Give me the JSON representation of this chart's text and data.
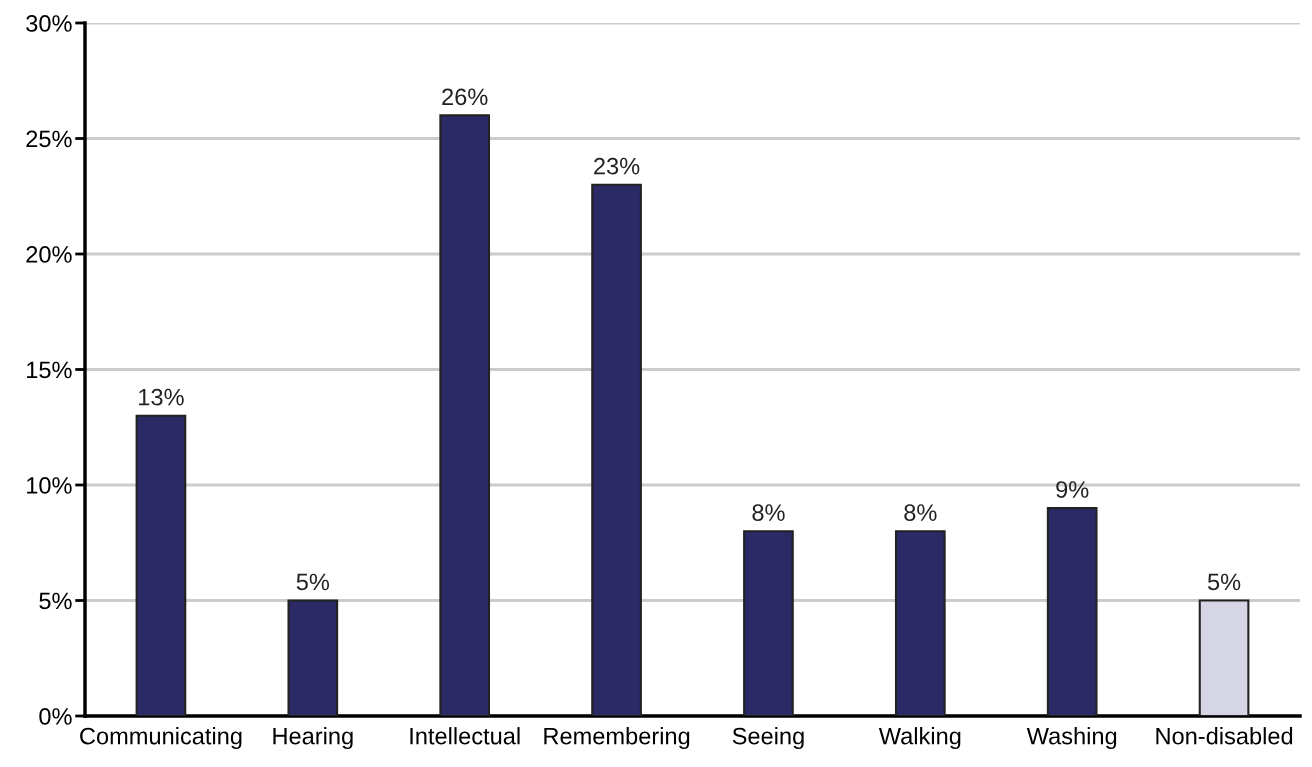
{
  "chart_data": {
    "type": "bar",
    "categories": [
      "Communicating",
      "Hearing",
      "Intellectual",
      "Remembering",
      "Seeing",
      "Walking",
      "Washing",
      "Non-disabled"
    ],
    "values": [
      13,
      5,
      26,
      23,
      8,
      8,
      9,
      5
    ],
    "colors": [
      "#2b2966",
      "#2b2966",
      "#2b2966",
      "#2b2966",
      "#2b2966",
      "#2b2966",
      "#2b2966",
      "#d5d5e5"
    ],
    "value_labels": [
      "13%",
      "5%",
      "26%",
      "23%",
      "8%",
      "8%",
      "9%",
      "5%"
    ],
    "ylim": [
      0,
      30
    ],
    "yticks": [
      {
        "value": 0,
        "label": "0%"
      },
      {
        "value": 5,
        "label": "5%"
      },
      {
        "value": 10,
        "label": "10%"
      },
      {
        "value": 15,
        "label": "15%"
      },
      {
        "value": 20,
        "label": "20%"
      },
      {
        "value": 25,
        "label": "25%"
      },
      {
        "value": 30,
        "label": "30%"
      }
    ],
    "grid": "y"
  }
}
